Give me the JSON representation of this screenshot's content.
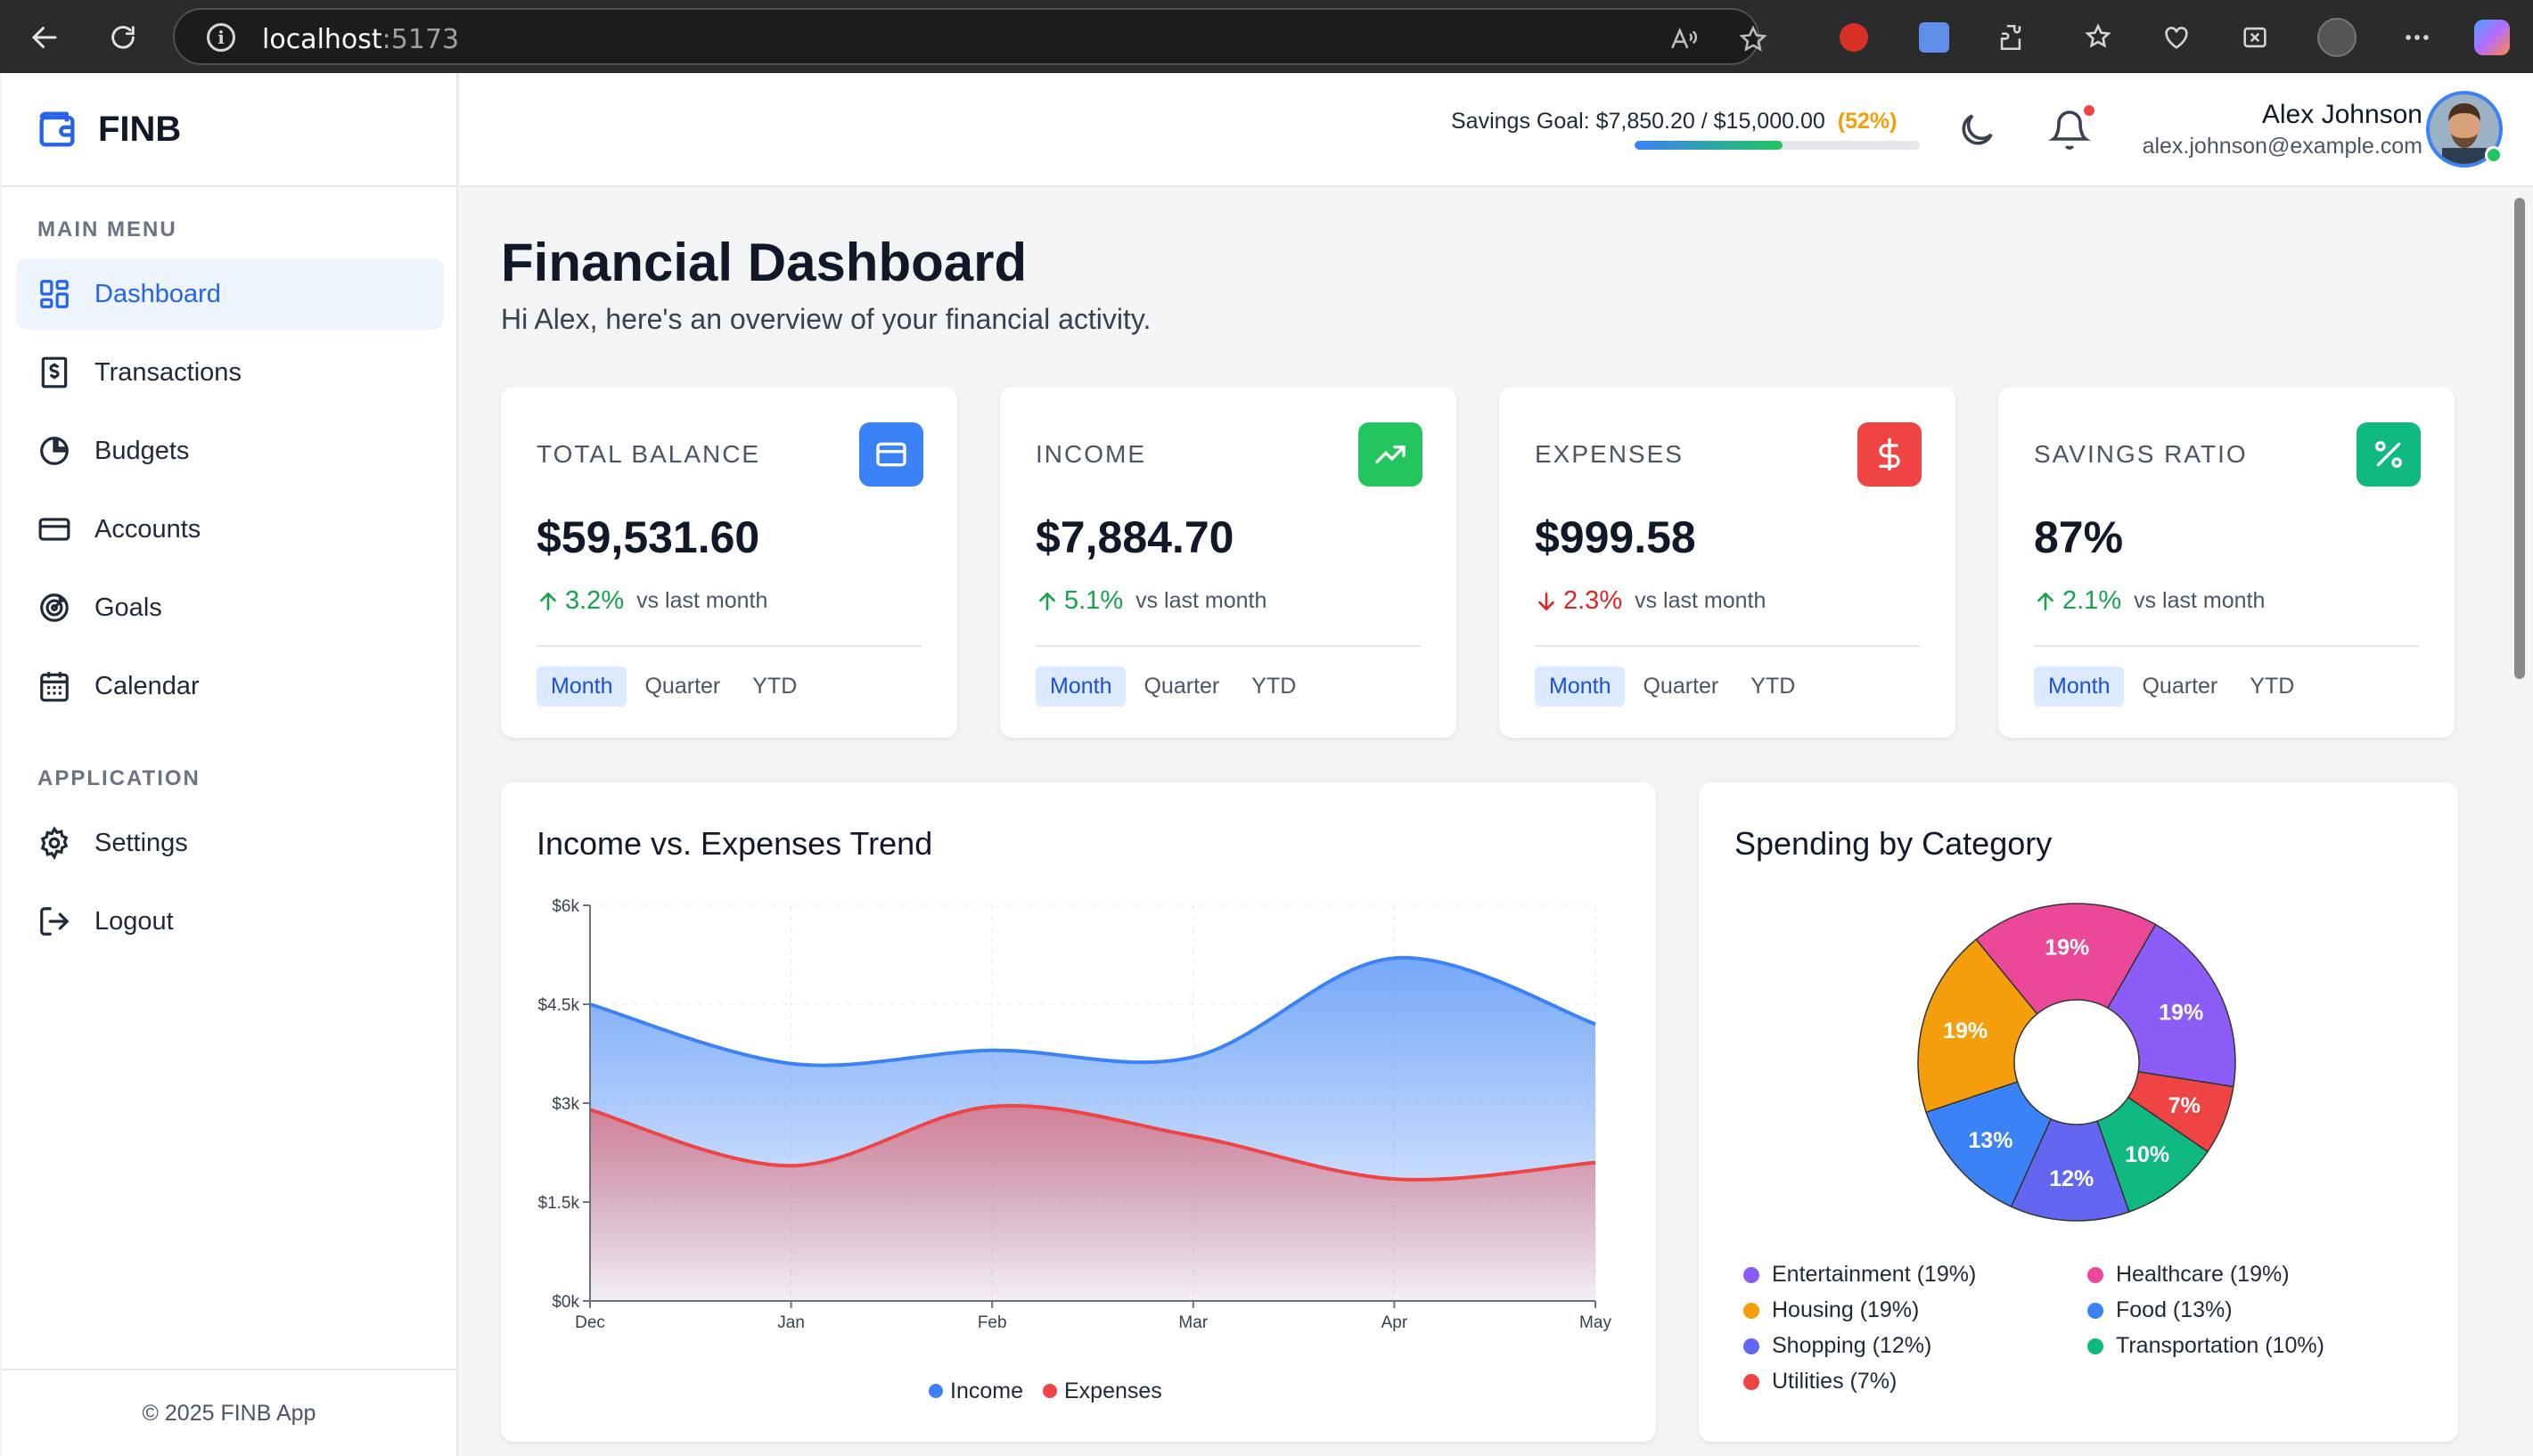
{
  "browser": {
    "url_host": "localhost",
    "url_port": ":5173"
  },
  "app": {
    "logo": "FINB",
    "footer": "© 2025 FINB App"
  },
  "sidebar": {
    "main_menu_label": "MAIN MENU",
    "application_label": "APPLICATION",
    "main_items": [
      {
        "label": "Dashboard",
        "icon": "dashboard-icon",
        "active": true
      },
      {
        "label": "Transactions",
        "icon": "receipt-icon"
      },
      {
        "label": "Budgets",
        "icon": "pie-chart-icon"
      },
      {
        "label": "Accounts",
        "icon": "credit-card-icon"
      },
      {
        "label": "Goals",
        "icon": "target-icon"
      },
      {
        "label": "Calendar",
        "icon": "calendar-icon"
      }
    ],
    "app_items": [
      {
        "label": "Settings",
        "icon": "gear-icon"
      },
      {
        "label": "Logout",
        "icon": "logout-icon"
      }
    ]
  },
  "header": {
    "savings_text": "Savings Goal: $7,850.20 / $15,000.00",
    "savings_pct": "(52%)",
    "savings_fraction": 0.52,
    "user_name": "Alex Johnson",
    "user_email": "alex.johnson@example.com"
  },
  "page": {
    "title": "Financial Dashboard",
    "subtitle": "Hi Alex, here's an overview of your financial activity."
  },
  "stats": [
    {
      "title": "TOTAL BALANCE",
      "value": "$59,531.60",
      "delta": "3.2%",
      "direction": "up",
      "suffix": "vs last month",
      "icon": "wallet-card-icon",
      "color": "#3b82f6"
    },
    {
      "title": "INCOME",
      "value": "$7,884.70",
      "delta": "5.1%",
      "direction": "up",
      "suffix": "vs last month",
      "icon": "trending-up-icon",
      "color": "#22c55e"
    },
    {
      "title": "EXPENSES",
      "value": "$999.58",
      "delta": "2.3%",
      "direction": "down",
      "suffix": "vs last month",
      "icon": "dollar-icon",
      "color": "#ef4444"
    },
    {
      "title": "SAVINGS RATIO",
      "value": "87%",
      "delta": "2.1%",
      "direction": "up",
      "suffix": "vs last month",
      "icon": "percent-icon",
      "color": "#10b981"
    }
  ],
  "period_tabs": [
    "Month",
    "Quarter",
    "YTD"
  ],
  "colors": {
    "up": "#16a34a",
    "down": "#dc2626",
    "income": "#3b82f6",
    "expenses": "#ef4444"
  },
  "chart_data": [
    {
      "type": "area",
      "title": "Income vs. Expenses Trend",
      "categories": [
        "Dec",
        "Jan",
        "Feb",
        "Mar",
        "Apr",
        "May"
      ],
      "y_tick_labels": [
        "$0k",
        "$1.5k",
        "$3k",
        "$4.5k",
        "$6k"
      ],
      "ylim": [
        0,
        6000
      ],
      "grid": true,
      "legend": "bottom",
      "series": [
        {
          "name": "Income",
          "values": [
            4500,
            3600,
            3800,
            3700,
            5200,
            4200
          ],
          "color": "#3b82f6"
        },
        {
          "name": "Expenses",
          "values": [
            2900,
            2050,
            2950,
            2500,
            1850,
            2100
          ],
          "color": "#ef4444"
        }
      ]
    },
    {
      "type": "pie",
      "title": "Spending by Category",
      "legend": "bottom",
      "slices": [
        {
          "name": "Entertainment (19%)",
          "label": "19%",
          "value": 19,
          "color": "#8b5cf6"
        },
        {
          "name": "Utilities (7%)",
          "label": "7%",
          "value": 7,
          "color": "#ef4444"
        },
        {
          "name": "Transportation (10%)",
          "label": "10%",
          "value": 10,
          "color": "#10b981"
        },
        {
          "name": "Shopping (12%)",
          "label": "12%",
          "value": 12,
          "color": "#6366f1"
        },
        {
          "name": "Food (13%)",
          "label": "13%",
          "value": 13,
          "color": "#3b82f6"
        },
        {
          "name": "Housing (19%)",
          "label": "19%",
          "value": 19,
          "color": "#f59e0b"
        },
        {
          "name": "Healthcare (19%)",
          "label": "19%",
          "value": 19,
          "color": "#ec4899"
        }
      ],
      "legend_order": [
        "Entertainment (19%)",
        "Healthcare (19%)",
        "Housing (19%)",
        "Food (13%)",
        "Shopping (12%)",
        "Transportation (10%)",
        "Utilities (7%)"
      ]
    }
  ]
}
